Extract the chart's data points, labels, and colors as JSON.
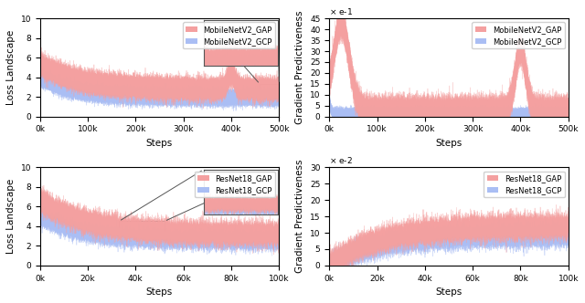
{
  "gap_color": "#F4A0A0",
  "gcp_color": "#AABEF4",
  "gap_color_solid": "#E06060",
  "gcp_color_solid": "#6080D8",
  "figure_bg": "#ffffff",
  "mob_loss_steps": 500000,
  "mob_loss_ylim": [
    0,
    10
  ],
  "mob_loss_yticks": [
    0,
    2,
    4,
    6,
    8,
    10
  ],
  "mob_loss_xticks": [
    0,
    100000,
    200000,
    300000,
    400000,
    500000
  ],
  "mob_loss_xlabel": "Steps",
  "mob_loss_ylabel": "Loss Landscape",
  "mob_loss_legend": [
    "MobileNetV2_GAP",
    "MobileNetV2_GCP"
  ],
  "mob_grad_steps": 500000,
  "mob_grad_ylim": [
    0,
    45
  ],
  "mob_grad_scale": "x e-1",
  "mob_grad_yticks": [
    0,
    5,
    10,
    15,
    20,
    25,
    30,
    35,
    40,
    45
  ],
  "mob_grad_xticks": [
    0,
    100000,
    200000,
    300000,
    400000,
    500000
  ],
  "mob_grad_xlabel": "Steps",
  "mob_grad_ylabel": "Gradient Predictiveness",
  "mob_grad_legend": [
    "MobileNetV2_GAP",
    "MobileNetV2_GCP"
  ],
  "res_loss_steps": 100000,
  "res_loss_ylim": [
    0,
    10
  ],
  "res_loss_yticks": [
    0,
    2,
    4,
    6,
    8,
    10
  ],
  "res_loss_xticks": [
    0,
    20000,
    40000,
    60000,
    80000,
    100000
  ],
  "res_loss_xlabel": "Steps",
  "res_loss_ylabel": "Loss Landscape",
  "res_loss_legend": [
    "ResNet18_GAP",
    "ResNet18_GCP"
  ],
  "res_grad_steps": 100000,
  "res_grad_ylim": [
    0,
    30
  ],
  "res_grad_scale": "x e-2",
  "res_grad_yticks": [
    0,
    5,
    10,
    15,
    20,
    25,
    30
  ],
  "res_grad_xticks": [
    0,
    20000,
    40000,
    60000,
    80000,
    100000
  ],
  "res_grad_xlabel": "Steps",
  "res_grad_ylabel": "Gradient Predictiveness",
  "res_grad_legend": [
    "ResNet18_GAP",
    "ResNet18_GCP"
  ]
}
